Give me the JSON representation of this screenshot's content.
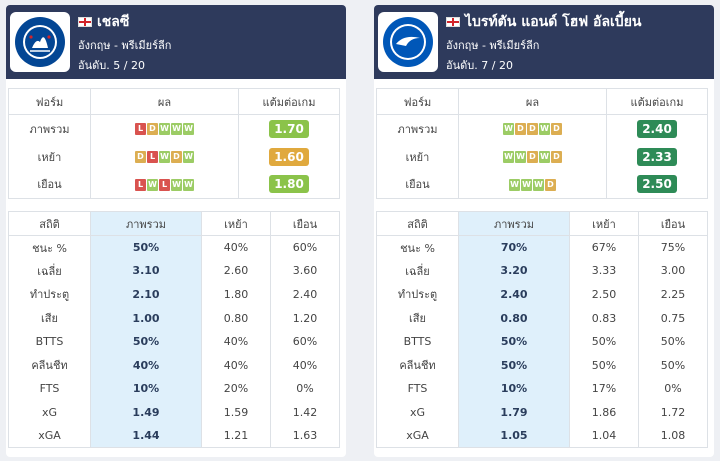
{
  "teams": [
    {
      "name": "เชลซี",
      "league": "อังกฤษ - พรีเมียร์ลีก",
      "rank": "อันดับ. 5 / 20",
      "logo_text": "CHELSEA FOOTBALL CLUB",
      "form_headers": [
        "ฟอร์ม",
        "ผล",
        "แต้มต่อเกม"
      ],
      "form_rows": [
        {
          "label": "ภาพรวม",
          "results": [
            "L",
            "D",
            "W",
            "W",
            "W"
          ],
          "ppg": "1.70",
          "ppg_color": "#8bc34a"
        },
        {
          "label": "เหย้า",
          "results": [
            "D",
            "L",
            "W",
            "D",
            "W"
          ],
          "ppg": "1.60",
          "ppg_color": "#e0a93e"
        },
        {
          "label": "เยือน",
          "results": [
            "L",
            "W",
            "L",
            "W",
            "W"
          ],
          "ppg": "1.80",
          "ppg_color": "#8bc34a"
        }
      ],
      "stat_headers": [
        "สถิติ",
        "ภาพรวม",
        "เหย้า",
        "เยือน"
      ],
      "stat_rows": [
        {
          "label": "ชนะ %",
          "overall": "50%",
          "home": "40%",
          "away": "60%"
        },
        {
          "label": "เฉลี่ย",
          "overall": "3.10",
          "home": "2.60",
          "away": "3.60"
        },
        {
          "label": "ทำประตู",
          "overall": "2.10",
          "home": "1.80",
          "away": "2.40"
        },
        {
          "label": "เสีย",
          "overall": "1.00",
          "home": "0.80",
          "away": "1.20"
        },
        {
          "label": "BTTS",
          "overall": "50%",
          "home": "40%",
          "away": "60%"
        },
        {
          "label": "คลีนชีท",
          "overall": "40%",
          "home": "40%",
          "away": "40%"
        },
        {
          "label": "FTS",
          "overall": "10%",
          "home": "20%",
          "away": "0%"
        },
        {
          "label": "xG",
          "overall": "1.49",
          "home": "1.59",
          "away": "1.42"
        },
        {
          "label": "xGA",
          "overall": "1.44",
          "home": "1.21",
          "away": "1.63"
        }
      ]
    },
    {
      "name": "ไบรท์ตัน แอนด์ โฮฟ อัลเบี้ยน",
      "league": "อังกฤษ - พรีเมียร์ลีก",
      "rank": "อันดับ. 7 / 20",
      "logo_text": "BRIGHTON & HOVE ALBION",
      "form_headers": [
        "ฟอร์ม",
        "ผล",
        "แต้มต่อเกม"
      ],
      "form_rows": [
        {
          "label": "ภาพรวม",
          "results": [
            "W",
            "D",
            "D",
            "W",
            "D"
          ],
          "ppg": "2.40",
          "ppg_color": "#2e8b57"
        },
        {
          "label": "เหย้า",
          "results": [
            "W",
            "W",
            "D",
            "W",
            "D"
          ],
          "ppg": "2.33",
          "ppg_color": "#2e8b57"
        },
        {
          "label": "เยือน",
          "results": [
            "W",
            "W",
            "W",
            "D"
          ],
          "ppg": "2.50",
          "ppg_color": "#2e8b57"
        }
      ],
      "stat_headers": [
        "สถิติ",
        "ภาพรวม",
        "เหย้า",
        "เยือน"
      ],
      "stat_rows": [
        {
          "label": "ชนะ %",
          "overall": "70%",
          "home": "67%",
          "away": "75%"
        },
        {
          "label": "เฉลี่ย",
          "overall": "3.20",
          "home": "3.33",
          "away": "3.00"
        },
        {
          "label": "ทำประตู",
          "overall": "2.40",
          "home": "2.50",
          "away": "2.25"
        },
        {
          "label": "เสีย",
          "overall": "0.80",
          "home": "0.83",
          "away": "0.75"
        },
        {
          "label": "BTTS",
          "overall": "50%",
          "home": "50%",
          "away": "50%"
        },
        {
          "label": "คลีนชีท",
          "overall": "50%",
          "home": "50%",
          "away": "50%"
        },
        {
          "label": "FTS",
          "overall": "10%",
          "home": "17%",
          "away": "0%"
        },
        {
          "label": "xG",
          "overall": "1.79",
          "home": "1.86",
          "away": "1.72"
        },
        {
          "label": "xGA",
          "overall": "1.05",
          "home": "1.04",
          "away": "1.08"
        }
      ]
    }
  ]
}
